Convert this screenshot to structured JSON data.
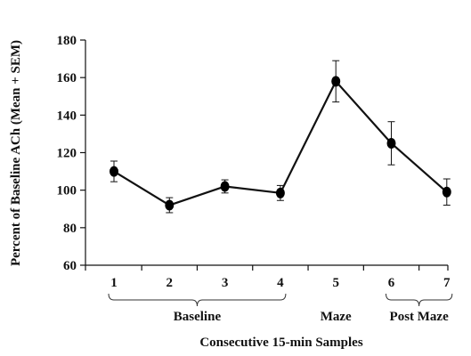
{
  "chart_data": {
    "type": "line",
    "title": "",
    "xlabel": "Consecutive 15-min Samples",
    "ylabel": "Percent of Baseline ACh (Mean + SEM)",
    "ylim": [
      60,
      180
    ],
    "yticks": [
      "60",
      "80",
      "100",
      "120",
      "140",
      "160",
      "180"
    ],
    "grid": false,
    "legend": "none",
    "x": [
      "1",
      "2",
      "3",
      "4",
      "5",
      "6",
      "7"
    ],
    "series": [
      {
        "values": [
          110,
          92,
          102,
          98.5,
          158,
          125,
          99
        ],
        "errors": [
          5.5,
          4,
          3.5,
          4,
          11,
          11.5,
          7
        ]
      }
    ],
    "phases": [
      {
        "label": "Baseline",
        "from": 0,
        "to": 3,
        "bracket": true
      },
      {
        "label": "Maze",
        "from": 4,
        "to": 4,
        "bracket": false
      },
      {
        "label": "Post Maze",
        "from": 5,
        "to": 6,
        "bracket": true
      }
    ],
    "colors": {
      "line": "#111111",
      "marker": "#000000"
    }
  }
}
